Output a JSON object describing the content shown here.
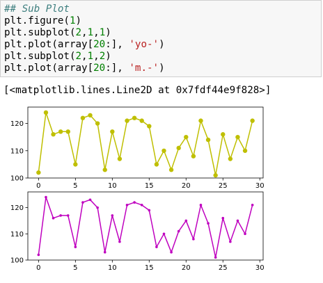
{
  "notebook": {
    "input_lines": [
      [
        {
          "t": "## Sub Plot",
          "c": "cm"
        }
      ],
      [
        {
          "t": "plt.figure(",
          "c": ""
        },
        {
          "t": "1",
          "c": "num"
        },
        {
          "t": ")",
          "c": ""
        }
      ],
      [
        {
          "t": "plt.subplot(",
          "c": ""
        },
        {
          "t": "2",
          "c": "num"
        },
        {
          "t": ",",
          "c": ""
        },
        {
          "t": "1",
          "c": "num"
        },
        {
          "t": ",",
          "c": ""
        },
        {
          "t": "1",
          "c": "num"
        },
        {
          "t": ")",
          "c": ""
        }
      ],
      [
        {
          "t": "plt.plot(array[",
          "c": ""
        },
        {
          "t": "20",
          "c": "num"
        },
        {
          "t": ":], ",
          "c": ""
        },
        {
          "t": "'yo-'",
          "c": "str"
        },
        {
          "t": ")",
          "c": ""
        }
      ],
      [
        {
          "t": "plt.subplot(",
          "c": ""
        },
        {
          "t": "2",
          "c": "num"
        },
        {
          "t": ",",
          "c": ""
        },
        {
          "t": "1",
          "c": "num"
        },
        {
          "t": ",",
          "c": ""
        },
        {
          "t": "2",
          "c": "num"
        },
        {
          "t": ")",
          "c": ""
        }
      ],
      [
        {
          "t": "plt.plot(array[",
          "c": ""
        },
        {
          "t": "20",
          "c": "num"
        },
        {
          "t": ":], ",
          "c": ""
        },
        {
          "t": "'m.-'",
          "c": "str"
        },
        {
          "t": ")",
          "c": ""
        }
      ]
    ],
    "output_text": "[<matplotlib.lines.Line2D at 0x7fdf44e9f828>]"
  },
  "chart_data": [
    {
      "type": "line",
      "marker": "circle",
      "color": "#bfbf00",
      "x": [
        0,
        1,
        2,
        3,
        4,
        5,
        6,
        7,
        8,
        9,
        10,
        11,
        12,
        13,
        14,
        15,
        16,
        17,
        18,
        19,
        20,
        21,
        22,
        23,
        24,
        25,
        26,
        27,
        28,
        29
      ],
      "y": [
        102,
        124,
        116,
        117,
        117,
        105,
        122,
        123,
        120,
        103,
        117,
        107,
        121,
        122,
        121,
        119,
        105,
        110,
        103,
        111,
        115,
        108,
        121,
        114,
        101,
        116,
        107,
        115,
        110,
        121
      ],
      "xlim": [
        -1.45,
        30.45
      ],
      "ylim": [
        100,
        126
      ],
      "xticks": [
        0,
        5,
        10,
        15,
        20,
        25,
        30
      ],
      "yticks": [
        100,
        110,
        120
      ]
    },
    {
      "type": "line",
      "marker": "point",
      "color": "#bf00bf",
      "x": [
        0,
        1,
        2,
        3,
        4,
        5,
        6,
        7,
        8,
        9,
        10,
        11,
        12,
        13,
        14,
        15,
        16,
        17,
        18,
        19,
        20,
        21,
        22,
        23,
        24,
        25,
        26,
        27,
        28,
        29
      ],
      "y": [
        102,
        124,
        116,
        117,
        117,
        105,
        122,
        123,
        120,
        103,
        117,
        107,
        121,
        122,
        121,
        119,
        105,
        110,
        103,
        111,
        115,
        108,
        121,
        114,
        101,
        116,
        107,
        115,
        110,
        121
      ],
      "xlim": [
        -1.45,
        30.45
      ],
      "ylim": [
        100,
        126
      ],
      "xticks": [
        0,
        5,
        10,
        15,
        20,
        25,
        30
      ],
      "yticks": [
        100,
        110,
        120
      ]
    }
  ]
}
